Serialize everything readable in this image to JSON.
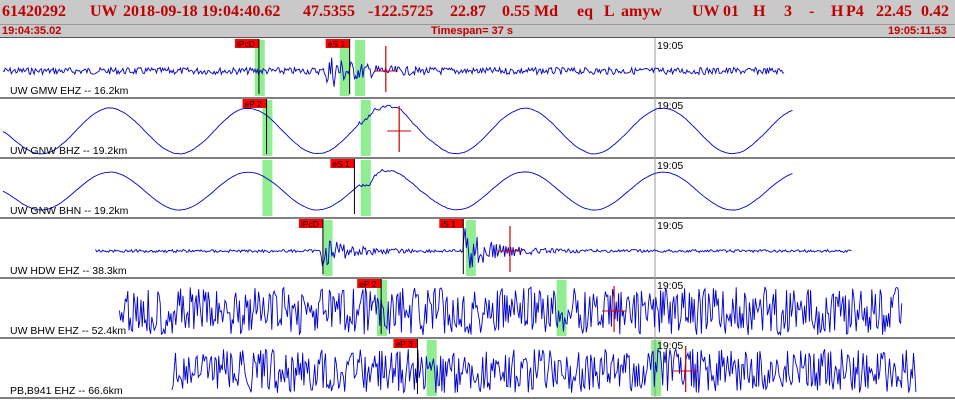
{
  "header": {
    "event_id": "61420292",
    "network": "UW",
    "datetime": "2018-09-18 19:04:40.62",
    "lat": "47.5355",
    "lon": "-122.5725",
    "depth": "22.87",
    "magnitude": "0.55 Md",
    "etype": "eq",
    "flag": "L",
    "user": "amyw",
    "net2": "UW",
    "version": "01",
    "h": "H",
    "n3": "3",
    "dash": "-",
    "h2": "H",
    "p4": "P4",
    "f1": "22.45",
    "f2": "0.42"
  },
  "timebar": {
    "start": "19:04:35.02",
    "timespan": "Timespan=  37 s",
    "end": "19:05:11.53"
  },
  "colors": {
    "header_bg": "#c9c9c9",
    "header_text": "#c00000",
    "wave": "#0000cc",
    "pick_box": "#ff0000",
    "window": "#90ee90",
    "pick_line": "#cc0000"
  },
  "traces": [
    {
      "label": "UW GMW EHZ -- 16.2km",
      "time_label": "19:05",
      "amp": 4,
      "noise": 3.5,
      "start": 0.003,
      "end": 0.822,
      "smooth": 0.0,
      "events": [
        {
          "at": 0.345,
          "amp": 16
        }
      ],
      "picks": [
        {
          "label": "iPcD",
          "at": 0.246
        },
        {
          "label": "eS 1",
          "at": 0.341
        }
      ],
      "windows": [
        0.272,
        0.361,
        0.377
      ],
      "red_marks": [
        0.404
      ]
    },
    {
      "label": "UW GNW BHZ -- 19.2km",
      "time_label": "19:05",
      "amp": 6,
      "noise": 1.2,
      "start": 0.003,
      "end": 0.83,
      "smooth": 1.0,
      "events": [
        {
          "at": 0.38,
          "amp": 20
        }
      ],
      "picks": [
        {
          "label": "eP 2",
          "at": 0.254
        }
      ],
      "windows": [
        0.28,
        0.383
      ],
      "red_marks": [
        0.418
      ]
    },
    {
      "label": "UW GNW BHN -- 19.2km",
      "time_label": "19:05",
      "amp": 5,
      "noise": 0.8,
      "start": 0.003,
      "end": 0.83,
      "smooth": 1.0,
      "events": [
        {
          "at": 0.38,
          "amp": 18
        }
      ],
      "picks": [
        {
          "label": "eS 1",
          "at": 0.346
        }
      ],
      "windows": [
        0.28,
        0.383
      ],
      "red_marks": []
    },
    {
      "label": "UW HDW EHZ -- 38.3km",
      "time_label": "19:05",
      "amp": 2,
      "noise": 1.5,
      "start": 0.1,
      "end": 0.892,
      "smooth": 0.0,
      "events": [
        {
          "at": 0.34,
          "amp": 14
        },
        {
          "at": 0.489,
          "amp": 22
        }
      ],
      "picks": [
        {
          "label": "iPcD",
          "at": 0.313
        },
        {
          "label": "iS 1",
          "at": 0.46
        }
      ],
      "windows": [
        0.343,
        0.493
      ],
      "red_marks": [
        0.534
      ]
    },
    {
      "label": "UW BHW EHZ -- 52.4km",
      "time_label": "19:05",
      "amp": 24,
      "noise": 24,
      "start": 0.125,
      "end": 0.945,
      "smooth": 0.0,
      "events": [],
      "picks": [
        {
          "label": "eP 2",
          "at": 0.374
        }
      ],
      "windows": [
        0.4,
        0.588
      ],
      "red_marks": [
        0.643
      ]
    },
    {
      "label": "PB,B941 EHZ -- 66.6km",
      "time_label": "19:05",
      "amp": 22,
      "noise": 22,
      "start": 0.18,
      "end": 0.96,
      "smooth": 0.0,
      "events": [],
      "picks": [
        {
          "label": "eP 3",
          "at": 0.412
        }
      ],
      "windows": [
        0.452,
        0.687
      ],
      "red_marks": [
        0.718
      ]
    }
  ]
}
